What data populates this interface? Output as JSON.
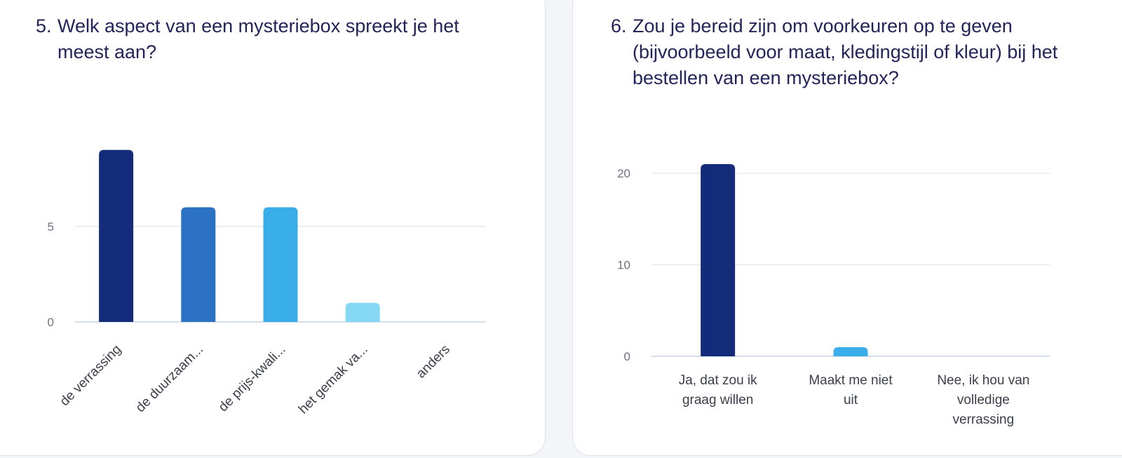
{
  "cards": [
    {
      "number": "5.",
      "question": "Welk aspect van een mysteriebox spreekt je het meest aan?",
      "chart_data": {
        "type": "bar",
        "categories": [
          "de verrassing",
          "de duurzaam...",
          "de prijs-kwali...",
          "het gemak va...",
          "anders"
        ],
        "values": [
          9,
          6,
          6,
          1,
          0
        ],
        "colors": [
          "#142b7c",
          "#2b71c4",
          "#3aaee8",
          "#85d8f4",
          "#c9ecfa"
        ],
        "yticks": [
          0,
          5
        ],
        "ylim": [
          0,
          9.8
        ],
        "xlabel": "",
        "ylabel": "",
        "grid": true,
        "label_rotation": -45
      }
    },
    {
      "number": "6.",
      "question": "Zou je bereid zijn om voorkeuren op te geven (bijvoorbeeld voor maat, kledingstijl of kleur) bij het bestellen van een mysteriebox?",
      "chart_data": {
        "type": "bar",
        "categories": [
          "Ja, dat zou ik graag willen",
          "Maakt me niet uit",
          "Nee, ik hou van volledige verrassing"
        ],
        "values": [
          21,
          1,
          0
        ],
        "colors": [
          "#142b7c",
          "#3aaee8",
          "#85d8f4"
        ],
        "yticks": [
          0,
          10,
          20
        ],
        "ylim": [
          0,
          22
        ],
        "xlabel": "",
        "ylabel": "",
        "grid": true,
        "label_rotation": 0
      }
    }
  ]
}
